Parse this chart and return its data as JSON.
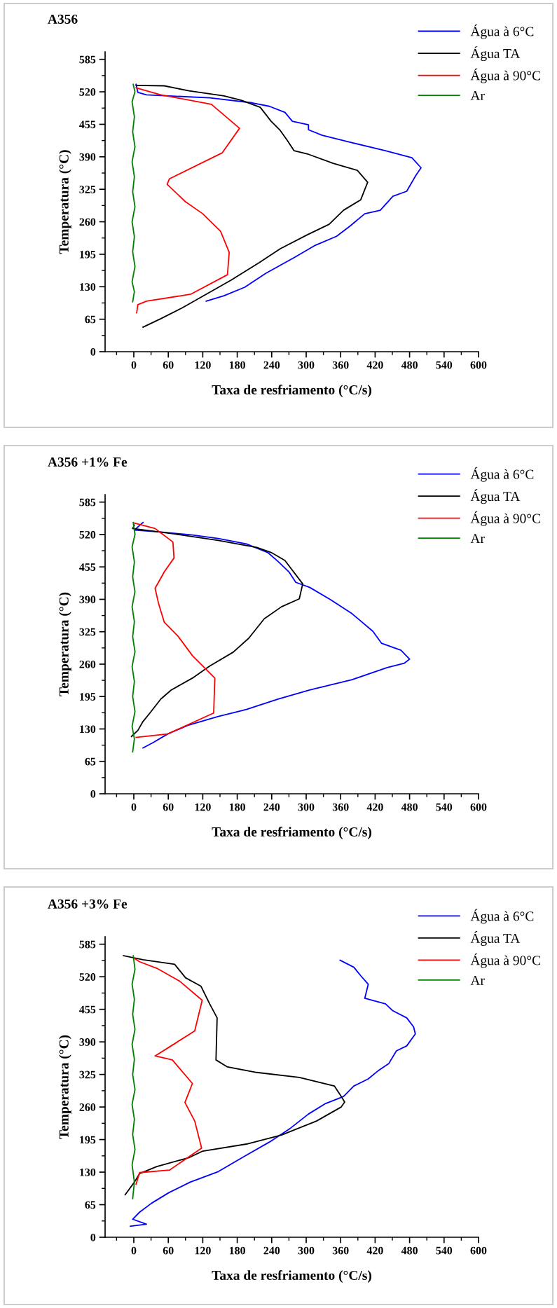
{
  "chart_data": [
    {
      "type": "line",
      "title": "A356",
      "xlabel": "Taxa de resfriamento (°C/s)",
      "ylabel": "Temperatura (°C)",
      "xlim": [
        -50,
        600
      ],
      "xticks": [
        0,
        60,
        120,
        180,
        240,
        300,
        360,
        420,
        480,
        540,
        600
      ],
      "ylim": [
        0,
        600
      ],
      "yticks": [
        0,
        65,
        130,
        195,
        260,
        325,
        390,
        455,
        520,
        585
      ],
      "grid": false,
      "legend": "top right",
      "marker": "none",
      "line_style": "solid",
      "series": [
        {
          "name": "Água à 6°C",
          "color": "#0000ff",
          "x": [
            4,
            7,
            22,
            132,
            206,
            236,
            263,
            276,
            304,
            304,
            328,
            377,
            438,
            484,
            500,
            491,
            475,
            451,
            429,
            402,
            377,
            353,
            316,
            280,
            230,
            193,
            157,
            126
          ],
          "values": [
            535,
            519,
            514,
            508,
            498,
            491,
            479,
            461,
            454,
            444,
            433,
            419,
            402,
            388,
            368,
            353,
            321,
            311,
            283,
            276,
            252,
            231,
            213,
            189,
            157,
            129,
            112,
            101
          ]
        },
        {
          "name": "Água TA",
          "color": "#000000",
          "x": [
            4,
            53,
            96,
            157,
            187,
            220,
            239,
            254,
            267,
            279,
            304,
            347,
            389,
            407,
            395,
            365,
            340,
            302,
            255,
            218,
            169,
            126,
            83,
            47,
            16
          ],
          "values": [
            533,
            532,
            522,
            512,
            503,
            489,
            461,
            444,
            423,
            402,
            395,
            377,
            363,
            339,
            304,
            283,
            255,
            234,
            206,
            178,
            143,
            115,
            87,
            66,
            49
          ]
        },
        {
          "name": "Água à 90°C",
          "color": "#ff0000",
          "x": [
            4,
            47,
            135,
            184,
            154,
            62,
            58,
            90,
            120,
            151,
            166,
            163,
            99,
            22,
            7,
            5
          ],
          "values": [
            528,
            514,
            495,
            447,
            398,
            346,
            335,
            300,
            276,
            241,
            199,
            154,
            115,
            101,
            94,
            78
          ]
        },
        {
          "name": "Ar",
          "color": "#008000",
          "x": [
            -1,
            2,
            -3,
            1,
            -2,
            2,
            -3,
            1,
            -2,
            2,
            -3,
            1,
            -2,
            2,
            -3,
            1,
            -2
          ],
          "values": [
            535,
            520,
            500,
            470,
            440,
            410,
            380,
            350,
            320,
            290,
            260,
            230,
            200,
            170,
            140,
            120,
            100
          ]
        }
      ]
    },
    {
      "type": "line",
      "title": "A356 +1% Fe",
      "xlabel": "Taxa de resfriamento (°C/s)",
      "ylabel": "Temperatura (°C)",
      "xlim": [
        -50,
        600
      ],
      "xticks": [
        0,
        60,
        120,
        180,
        240,
        300,
        360,
        420,
        480,
        540,
        600
      ],
      "ylim": [
        0,
        600
      ],
      "yticks": [
        0,
        65,
        130,
        195,
        260,
        325,
        390,
        455,
        520,
        585
      ],
      "grid": false,
      "legend": "top right",
      "marker": "none",
      "line_style": "solid",
      "series": [
        {
          "name": "Água à 6°C",
          "color": "#0000ff",
          "x": [
            16,
            1,
            47,
            102,
            147,
            196,
            233,
            251,
            270,
            282,
            306,
            343,
            380,
            416,
            431,
            465,
            480,
            471,
            441,
            380,
            306,
            251,
            196,
            147,
            96,
            59,
            34,
            16
          ],
          "values": [
            544,
            529,
            525,
            519,
            512,
            501,
            484,
            466,
            445,
            424,
            414,
            389,
            361,
            326,
            302,
            288,
            270,
            262,
            253,
            229,
            208,
            190,
            169,
            155,
            138,
            120,
            103,
            92
          ]
        },
        {
          "name": "Água TA",
          "color": "#000000",
          "x": [
            1,
            -2,
            71,
            147,
            214,
            239,
            263,
            294,
            288,
            257,
            227,
            200,
            173,
            132,
            102,
            65,
            47,
            28,
            16,
            7,
            -4
          ],
          "values": [
            539,
            532,
            521,
            508,
            494,
            484,
            468,
            421,
            391,
            375,
            351,
            312,
            284,
            256,
            232,
            208,
            190,
            162,
            145,
            127,
            115
          ]
        },
        {
          "name": "Água à 90°C",
          "color": "#ff0000",
          "x": [
            1,
            37,
            68,
            70,
            53,
            37,
            43,
            53,
            77,
            102,
            141,
            139,
            59,
            4
          ],
          "values": [
            543,
            532,
            505,
            473,
            445,
            412,
            382,
            344,
            316,
            277,
            232,
            162,
            120,
            113
          ]
        },
        {
          "name": "Ar",
          "color": "#008000",
          "x": [
            -1,
            2,
            -3,
            1,
            -2,
            2,
            -3,
            1,
            -2,
            2,
            -3,
            1,
            -2,
            2,
            -3,
            1,
            -2
          ],
          "values": [
            544,
            520,
            495,
            465,
            435,
            405,
            375,
            345,
            315,
            285,
            255,
            225,
            195,
            165,
            135,
            110,
            84
          ]
        }
      ]
    },
    {
      "type": "line",
      "title": "A356 +3% Fe",
      "xlabel": "Taxa de resfriamento (°C/s)",
      "ylabel": "Temperatura (°C)",
      "xlim": [
        -50,
        600
      ],
      "xticks": [
        0,
        60,
        120,
        180,
        240,
        300,
        360,
        420,
        480,
        540,
        600
      ],
      "ylim": [
        0,
        600
      ],
      "yticks": [
        0,
        65,
        130,
        195,
        260,
        325,
        390,
        455,
        520,
        585
      ],
      "grid": false,
      "legend": "top right",
      "marker": "none",
      "line_style": "solid",
      "series": [
        {
          "name": "Água à 6°C",
          "color": "#0000ff",
          "x": [
            359,
            383,
            395,
            408,
            402,
            438,
            451,
            475,
            487,
            490,
            475,
            457,
            444,
            426,
            408,
            383,
            365,
            334,
            304,
            273,
            236,
            193,
            147,
            98,
            61,
            31,
            10,
            -2,
            22,
            -6
          ],
          "values": [
            553,
            539,
            522,
            505,
            477,
            466,
            452,
            438,
            420,
            406,
            382,
            372,
            347,
            333,
            316,
            302,
            281,
            267,
            246,
            218,
            190,
            162,
            131,
            110,
            89,
            68,
            50,
            36,
            26,
            22
          ]
        },
        {
          "name": "Água TA",
          "color": "#000000",
          "x": [
            -18,
            16,
            71,
            90,
            117,
            132,
            145,
            143,
            163,
            214,
            288,
            349,
            361,
            367,
            361,
            318,
            257,
            196,
            120,
            96,
            40,
            10,
            1,
            -15
          ],
          "values": [
            562,
            554,
            545,
            518,
            501,
            466,
            438,
            354,
            340,
            329,
            319,
            302,
            281,
            270,
            260,
            232,
            204,
            186,
            172,
            159,
            141,
            127,
            110,
            85
          ]
        },
        {
          "name": "Água à 90°C",
          "color": "#ff0000",
          "x": [
            1,
            10,
            40,
            80,
            119,
            106,
            65,
            37,
            67,
            102,
            89,
            106,
            118,
            62,
            10,
            4
          ],
          "values": [
            557,
            550,
            537,
            511,
            473,
            412,
            382,
            362,
            354,
            307,
            269,
            232,
            178,
            134,
            129,
            106
          ]
        },
        {
          "name": "Ar",
          "color": "#008000",
          "x": [
            -1,
            2,
            -3,
            1,
            -2,
            2,
            -3,
            1,
            -2,
            2,
            -3,
            1,
            -2,
            2,
            -3,
            1,
            -2
          ],
          "values": [
            562,
            535,
            505,
            475,
            445,
            415,
            385,
            355,
            325,
            295,
            265,
            235,
            205,
            175,
            145,
            110,
            77
          ]
        }
      ]
    }
  ]
}
